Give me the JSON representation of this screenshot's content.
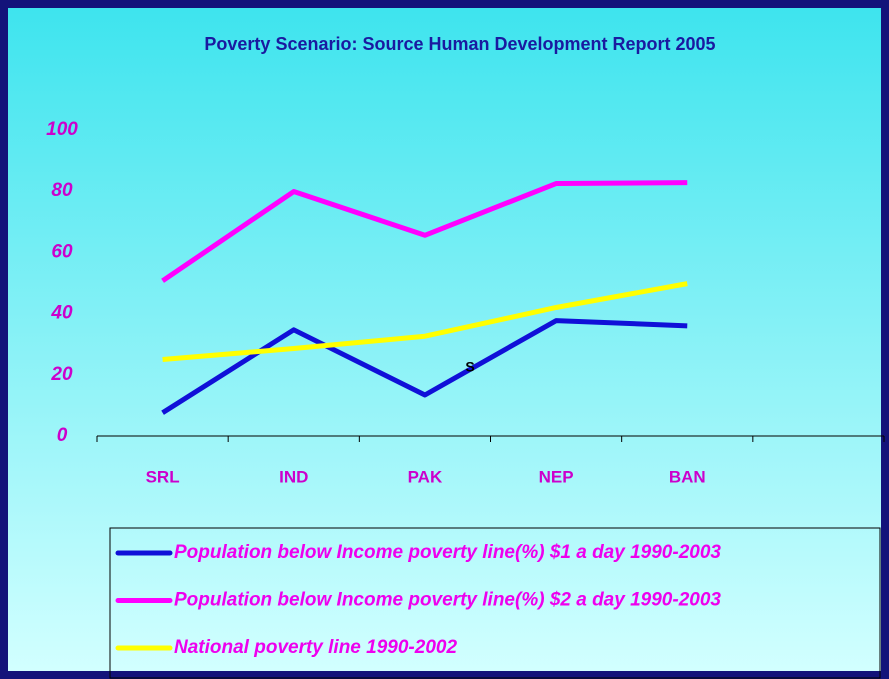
{
  "chart_data": {
    "type": "line",
    "title": "Poverty Scenario: Source Human Development Report 2005",
    "annotation": "S",
    "categories": [
      "SRL",
      "IND",
      "PAK",
      "NEP",
      "BAN",
      null
    ],
    "series": [
      {
        "name": "Population below Income poverty line(%) $1 a day 1990-2003",
        "color": "#1010d8",
        "values": [
          7.6,
          34.7,
          13.4,
          37.7,
          36,
          null
        ]
      },
      {
        "name": "Population below Income poverty line(%) $2 a day 1990-2003",
        "color": "#ff00ff",
        "values": [
          50.7,
          79.9,
          65.6,
          82.5,
          82.8,
          null
        ]
      },
      {
        "name": "National poverty line 1990-2002",
        "color": "#ffff00",
        "values": [
          25,
          28.6,
          32.6,
          42,
          49.8,
          null
        ]
      }
    ],
    "ylim": [
      0,
      100
    ],
    "yticks": [
      0,
      20,
      40,
      60,
      80,
      100
    ],
    "grid": false
  }
}
